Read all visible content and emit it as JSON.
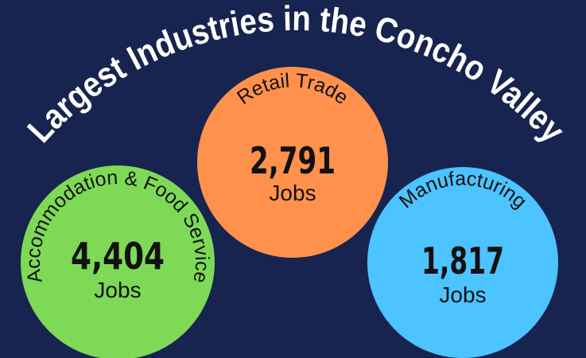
{
  "title": "Largest Industries in the Concho Valley",
  "industries": [
    {
      "name": "Accommodation & Food Service",
      "jobs": "4,404",
      "unit": "Jobs"
    },
    {
      "name": "Retail Trade",
      "jobs": "2,791",
      "unit": "Jobs"
    },
    {
      "name": "Manufacturing",
      "jobs": "1,817",
      "unit": "Jobs"
    }
  ]
}
